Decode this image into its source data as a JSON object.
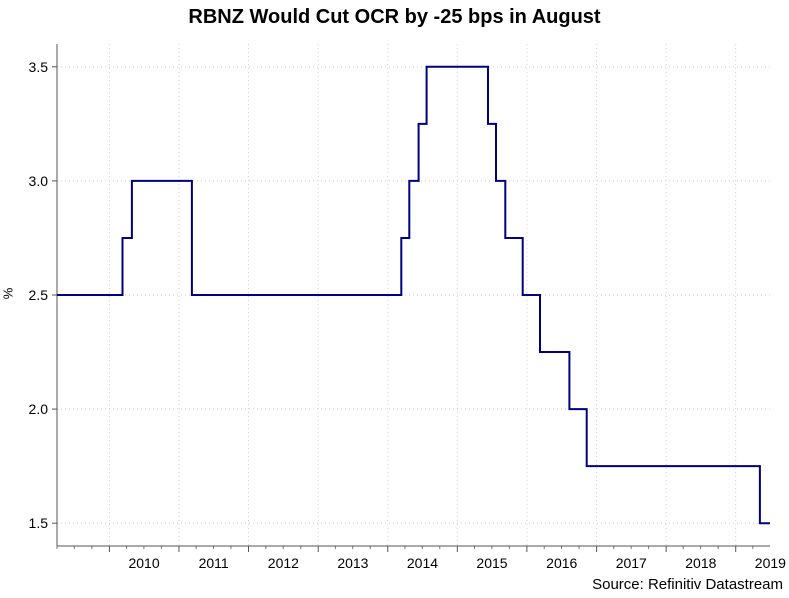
{
  "chart_data": {
    "type": "line",
    "title": "RBNZ Would Cut OCR by -25 bps in August",
    "xlabel": "",
    "ylabel": "%",
    "source": "Source: Refinitiv Datastream",
    "xlim": [
      "2009-04-01",
      "2019-06-30"
    ],
    "ylim": [
      1.4,
      3.6
    ],
    "yticks": [
      1.5,
      2.0,
      2.5,
      3.0,
      3.5
    ],
    "ytick_labels": [
      "1.5",
      "2.0",
      "2.5",
      "3.0",
      "3.5"
    ],
    "xtick_labels": [
      "2010",
      "2011",
      "2012",
      "2013",
      "2014",
      "2015",
      "2016",
      "2017",
      "2018",
      "2019"
    ],
    "grid": true,
    "step": true,
    "series": [
      {
        "color": "#000080",
        "points": [
          [
            "2009-04-01",
            2.5
          ],
          [
            "2010-03-11",
            2.75
          ],
          [
            "2010-04-29",
            3.0
          ],
          [
            "2011-03-10",
            2.5
          ],
          [
            "2014-03-13",
            2.75
          ],
          [
            "2014-04-24",
            3.0
          ],
          [
            "2014-06-12",
            3.25
          ],
          [
            "2014-07-24",
            3.5
          ],
          [
            "2015-06-11",
            3.25
          ],
          [
            "2015-07-23",
            3.0
          ],
          [
            "2015-09-10",
            2.75
          ],
          [
            "2015-12-10",
            2.5
          ],
          [
            "2016-03-10",
            2.25
          ],
          [
            "2016-08-11",
            2.0
          ],
          [
            "2016-11-10",
            1.75
          ],
          [
            "2019-05-08",
            1.5
          ],
          [
            "2019-06-30",
            1.5
          ]
        ]
      }
    ]
  }
}
